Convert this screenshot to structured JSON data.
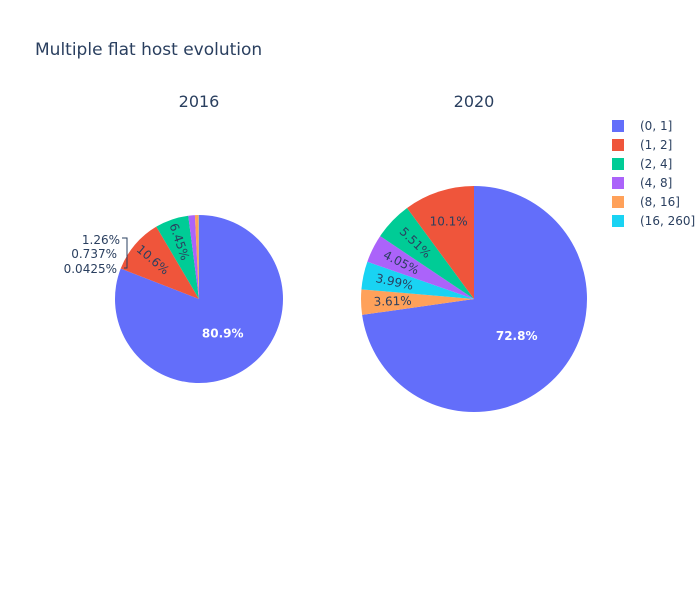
{
  "chart_data": {
    "type": "pie",
    "title": "Multiple flat host evolution",
    "categories": [
      "(0, 1]",
      "(1, 2]",
      "(2, 4]",
      "(4, 8]",
      "(8, 16]",
      "(16, 260]"
    ],
    "colors": [
      "#636efa",
      "#EF553B",
      "#00cc96",
      "#ab63fa",
      "#FFA15A",
      "#19d3f3"
    ],
    "series": [
      {
        "name": "2016",
        "values": [
          80.9,
          10.6,
          6.45,
          1.26,
          0.737,
          0.0425
        ],
        "labels": [
          "80.9%",
          "10.6%",
          "6.45%",
          "1.26%",
          "0.737%",
          "0.0425%"
        ]
      },
      {
        "name": "2020",
        "values": [
          72.8,
          10.1,
          5.51,
          4.05,
          3.61,
          3.99
        ],
        "labels": [
          "72.8%",
          "10.1%",
          "5.51%",
          "4.05%",
          "3.61%",
          "3.99%"
        ]
      }
    ],
    "legend": "top-right"
  }
}
